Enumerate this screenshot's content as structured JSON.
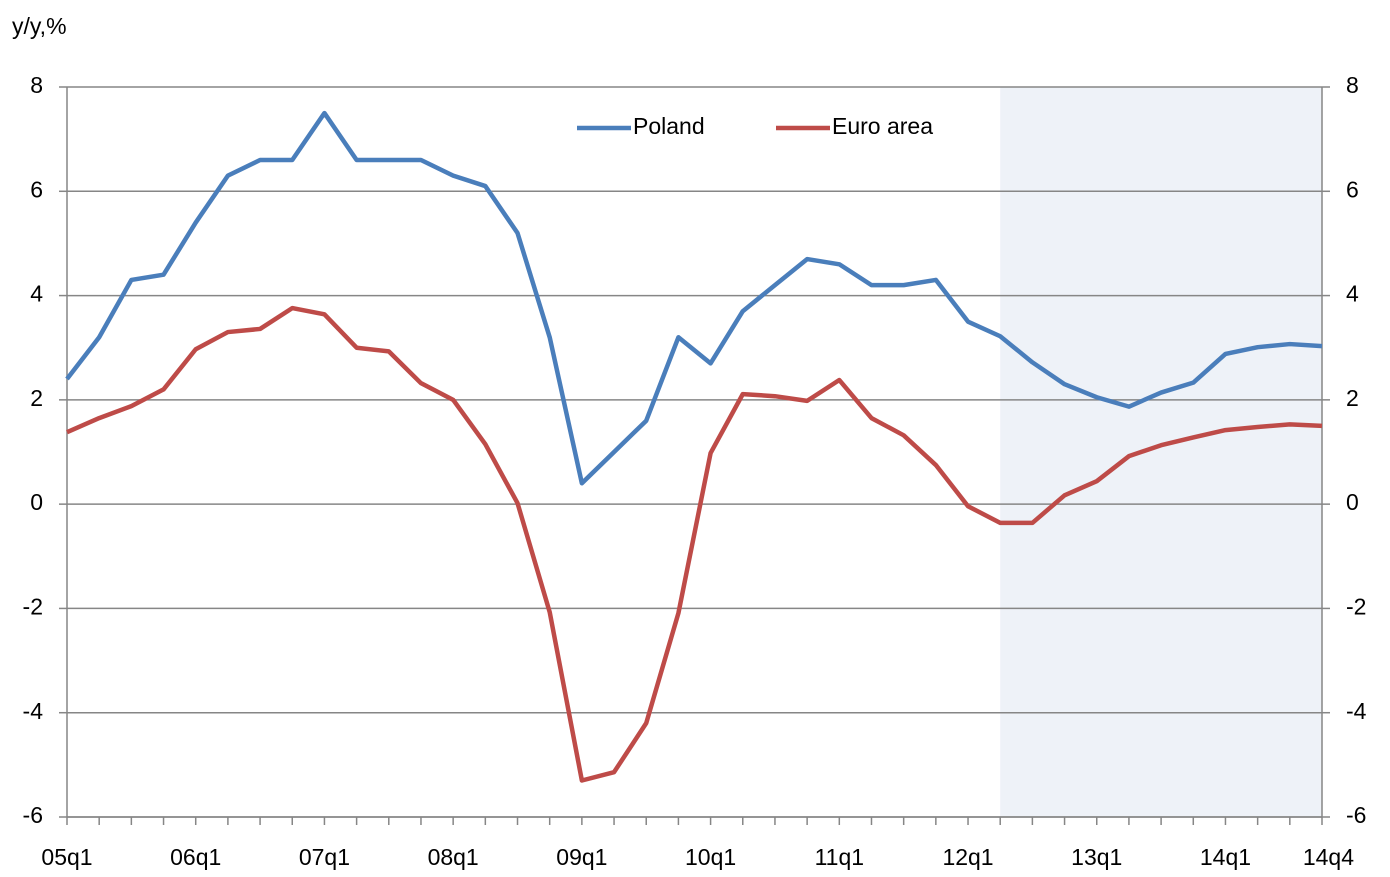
{
  "chart_data": {
    "type": "line",
    "axis_label": "y/y,%",
    "categories": [
      "05q1",
      null,
      null,
      null,
      "06q1",
      null,
      null,
      null,
      "07q1",
      null,
      null,
      null,
      "08q1",
      null,
      null,
      null,
      "09q1",
      null,
      null,
      null,
      "10q1",
      null,
      null,
      null,
      "11q1",
      null,
      null,
      null,
      "12q1",
      null,
      null,
      null,
      "13q1",
      null,
      null,
      null,
      "14q1",
      null,
      null,
      "14q4"
    ],
    "series": [
      {
        "name": "Poland",
        "color": "#4a7ebb",
        "values": [
          2.4,
          3.2,
          4.3,
          4.4,
          5.4,
          6.3,
          6.6,
          6.6,
          7.5,
          6.6,
          6.6,
          6.6,
          6.3,
          6.1,
          5.2,
          3.2,
          0.4,
          1.0,
          1.6,
          3.2,
          2.7,
          3.7,
          4.2,
          4.7,
          4.6,
          4.2,
          4.2,
          4.3,
          3.5,
          3.22,
          2.72,
          2.3,
          2.05,
          1.87,
          2.14,
          2.33,
          2.88,
          3.01,
          3.07,
          3.03
        ]
      },
      {
        "name": "Euro area",
        "color": "#be4b48",
        "values": [
          1.38,
          1.65,
          1.88,
          2.2,
          2.97,
          3.3,
          3.36,
          3.76,
          3.64,
          3.0,
          2.93,
          2.32,
          2.0,
          1.15,
          0.02,
          -2.07,
          -5.3,
          -5.14,
          -4.2,
          -2.09,
          0.98,
          2.11,
          2.07,
          1.98,
          2.38,
          1.65,
          1.32,
          0.75,
          -0.04,
          -0.36,
          -0.36,
          0.17,
          0.44,
          0.92,
          1.13,
          1.28,
          1.42,
          1.48,
          1.53,
          1.5
        ]
      }
    ],
    "ylim": [
      -6,
      8
    ],
    "yticks": [
      -6,
      -4,
      -2,
      0,
      2,
      4,
      6,
      8
    ],
    "y2lim": [
      -6,
      8
    ],
    "y2ticks": [
      -6,
      -4,
      -2,
      0,
      2,
      4,
      6,
      8
    ],
    "grid": true,
    "legend": "top",
    "shaded": [
      29,
      39
    ],
    "shade_color": "#eef2f8"
  }
}
